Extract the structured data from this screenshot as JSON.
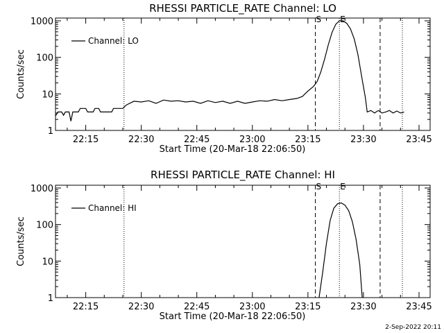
{
  "footer_date": "2-Sep-2022 20:11",
  "chart_data": [
    {
      "type": "line",
      "title": "RHESSI PARTICLE_RATE Channel: LO",
      "xlabel": "Start Time (20-Mar-18 22:06:50)",
      "ylabel": "Counts/sec",
      "yscale": "log",
      "xlim": [
        "22:06:50",
        "23:48:00"
      ],
      "ylim": [
        1,
        1000
      ],
      "x_ticks": [
        "22:15",
        "22:30",
        "22:45",
        "23:00",
        "23:15",
        "23:30",
        "23:45"
      ],
      "y_ticks": [
        "1",
        "10",
        "100",
        "1000"
      ],
      "legend": "top-left",
      "series": [
        {
          "name": "Channel: LO",
          "points": [
            [
              "22:06:50",
              2.5
            ],
            [
              "22:07:30",
              3.2
            ],
            [
              "22:08:30",
              3.2
            ],
            [
              "22:09:00",
              2.6
            ],
            [
              "22:09:30",
              3.2
            ],
            [
              "22:10:30",
              3.2
            ],
            [
              "22:11:00",
              1.8
            ],
            [
              "22:11:30",
              3.2
            ],
            [
              "22:13:00",
              3.2
            ],
            [
              "22:13:30",
              4.0
            ],
            [
              "22:15:00",
              4.0
            ],
            [
              "22:15:30",
              3.2
            ],
            [
              "22:17:00",
              3.2
            ],
            [
              "22:17:30",
              4.0
            ],
            [
              "22:18:30",
              4.0
            ],
            [
              "22:19:00",
              3.2
            ],
            [
              "22:22:00",
              3.2
            ],
            [
              "22:22:30",
              4.0
            ],
            [
              "22:25:00",
              4.0
            ],
            [
              "22:26:00",
              5.0
            ],
            [
              "22:28:00",
              6.3
            ],
            [
              "22:30:00",
              6.0
            ],
            [
              "22:32:00",
              6.5
            ],
            [
              "22:34:00",
              5.5
            ],
            [
              "22:36:00",
              6.8
            ],
            [
              "22:38:00",
              6.3
            ],
            [
              "22:40:00",
              6.5
            ],
            [
              "22:42:00",
              6.0
            ],
            [
              "22:44:00",
              6.3
            ],
            [
              "22:46:00",
              5.5
            ],
            [
              "22:48:00",
              6.5
            ],
            [
              "22:50:00",
              5.8
            ],
            [
              "22:52:00",
              6.3
            ],
            [
              "22:54:00",
              5.5
            ],
            [
              "22:56:00",
              6.3
            ],
            [
              "22:58:00",
              5.5
            ],
            [
              "23:00:00",
              6.0
            ],
            [
              "23:02:00",
              6.5
            ],
            [
              "23:04:00",
              6.3
            ],
            [
              "23:06:00",
              7.0
            ],
            [
              "23:08:00",
              6.5
            ],
            [
              "23:10:00",
              7.0
            ],
            [
              "23:12:00",
              7.5
            ],
            [
              "23:13:30",
              8.5
            ],
            [
              "23:15:00",
              12
            ],
            [
              "23:16:30",
              16
            ],
            [
              "23:17:30",
              22
            ],
            [
              "23:18:30",
              40
            ],
            [
              "23:19:30",
              90
            ],
            [
              "23:20:30",
              220
            ],
            [
              "23:21:30",
              480
            ],
            [
              "23:22:30",
              800
            ],
            [
              "23:23:30",
              1000
            ],
            [
              "23:24:30",
              1000
            ],
            [
              "23:25:30",
              850
            ],
            [
              "23:26:30",
              600
            ],
            [
              "23:27:30",
              320
            ],
            [
              "23:28:30",
              120
            ],
            [
              "23:29:30",
              30
            ],
            [
              "23:30:30",
              8
            ],
            [
              "23:31:00",
              3.2
            ],
            [
              "23:32:00",
              3.5
            ],
            [
              "23:33:00",
              3.0
            ],
            [
              "23:34:00",
              3.5
            ],
            [
              "23:35:00",
              3.0
            ],
            [
              "23:36:00",
              3.2
            ],
            [
              "23:37:00",
              3.5
            ],
            [
              "23:38:00",
              3.0
            ],
            [
              "23:39:00",
              3.4
            ],
            [
              "23:40:00",
              3.0
            ],
            [
              "23:41:00",
              3.2
            ]
          ]
        }
      ],
      "vlines": [
        {
          "time": "22:25:20",
          "style": "dotted",
          "label": ""
        },
        {
          "time": "23:17:00",
          "style": "dashed",
          "label": "S"
        },
        {
          "time": "23:23:30",
          "style": "dotted",
          "label": "E"
        },
        {
          "time": "23:34:30",
          "style": "dashed",
          "label": ""
        },
        {
          "time": "23:40:30",
          "style": "dotted",
          "label": ""
        }
      ]
    },
    {
      "type": "line",
      "title": "RHESSI PARTICLE_RATE Channel: HI",
      "xlabel": "Start Time (20-Mar-18 22:06:50)",
      "ylabel": "Counts/sec",
      "yscale": "log",
      "xlim": [
        "22:06:50",
        "23:48:00"
      ],
      "ylim": [
        1,
        1000
      ],
      "x_ticks": [
        "22:15",
        "22:30",
        "22:45",
        "23:00",
        "23:15",
        "23:30",
        "23:45"
      ],
      "y_ticks": [
        "1",
        "10",
        "100",
        "1000"
      ],
      "legend": "top-left",
      "series": [
        {
          "name": "Channel: HI",
          "points": [
            [
              "23:18:00",
              1.0
            ],
            [
              "23:19:00",
              5
            ],
            [
              "23:20:00",
              30
            ],
            [
              "23:21:00",
              130
            ],
            [
              "23:22:00",
              280
            ],
            [
              "23:23:00",
              370
            ],
            [
              "23:24:00",
              390
            ],
            [
              "23:25:00",
              340
            ],
            [
              "23:26:00",
              240
            ],
            [
              "23:27:00",
              120
            ],
            [
              "23:28:00",
              40
            ],
            [
              "23:29:00",
              8
            ],
            [
              "23:29:40",
              1.0
            ]
          ]
        }
      ],
      "vlines": [
        {
          "time": "22:25:20",
          "style": "dotted",
          "label": ""
        },
        {
          "time": "23:17:00",
          "style": "dashed",
          "label": "S"
        },
        {
          "time": "23:23:30",
          "style": "dotted",
          "label": "E"
        },
        {
          "time": "23:34:30",
          "style": "dashed",
          "label": ""
        },
        {
          "time": "23:40:30",
          "style": "dotted",
          "label": ""
        }
      ]
    }
  ]
}
